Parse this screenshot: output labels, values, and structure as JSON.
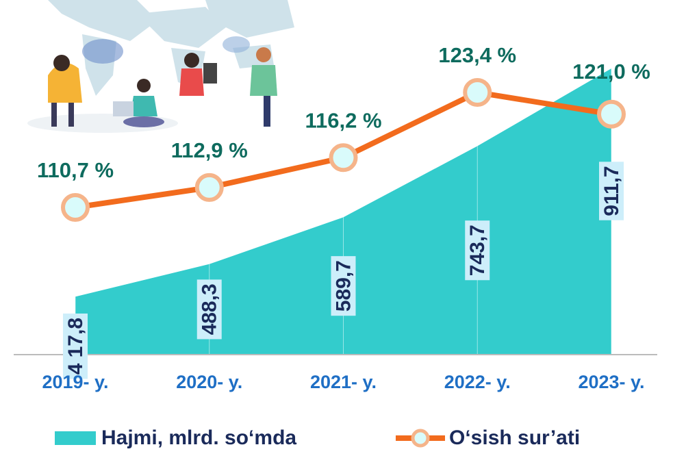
{
  "chart_data": {
    "type": "area-line",
    "categories": [
      "2019- y.",
      "2020- y.",
      "2021- y.",
      "2022- y.",
      "2023- y."
    ],
    "series": [
      {
        "name": "Hajmi, mlrd. so‘mda",
        "type": "area",
        "color": "#33cccc",
        "values": [
          417.8,
          488.3,
          589.7,
          743.7,
          911.7
        ],
        "value_labels": [
          "4 17,8",
          "488,3",
          "589,7",
          "743,7",
          "911,7"
        ]
      },
      {
        "name": "O‘sish sur’ati",
        "type": "line",
        "axis": "y2",
        "color": "#f26b1d",
        "values": [
          110.7,
          112.9,
          116.2,
          123.4,
          121.0
        ],
        "value_labels": [
          "110,7 %",
          "112,9 %",
          "116,2 %",
          "123,4 %",
          "121,0 %"
        ]
      }
    ]
  }
}
